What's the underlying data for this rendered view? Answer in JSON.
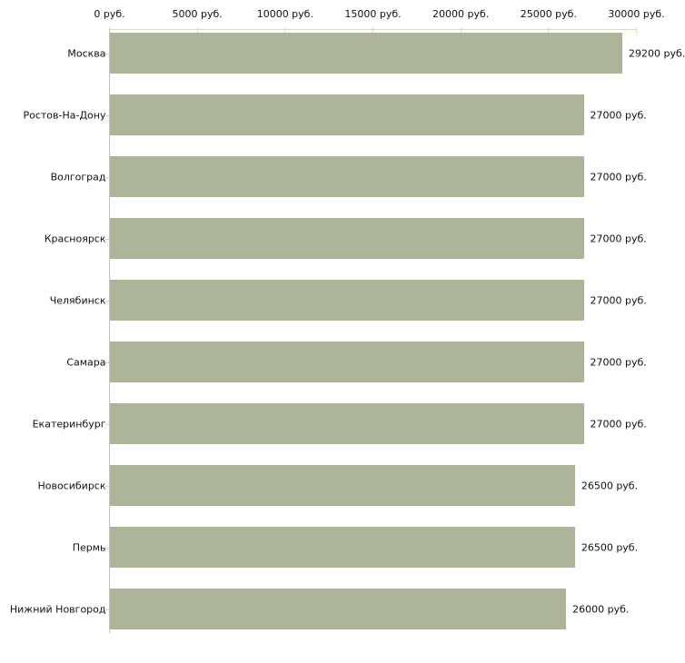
{
  "chart_data": {
    "type": "bar",
    "orientation": "horizontal",
    "title": "",
    "xlabel": "",
    "ylabel": "",
    "unit": "руб.",
    "categories": [
      "Москва",
      "Ростов-На-Дону",
      "Волгоград",
      "Красноярск",
      "Челябинск",
      "Самара",
      "Екатеринбург",
      "Новосибирск",
      "Пермь",
      "Нижний Новгород"
    ],
    "values": [
      29200,
      27000,
      27000,
      27000,
      27000,
      27000,
      27000,
      26500,
      26500,
      26000
    ],
    "value_labels": [
      "29200 руб.",
      "27000 руб.",
      "27000 руб.",
      "27000 руб.",
      "27000 руб.",
      "27000 руб.",
      "27000 руб.",
      "26500 руб.",
      "26500 руб.",
      "26000 руб."
    ],
    "x_ticks": [
      0,
      5000,
      10000,
      15000,
      20000,
      25000,
      30000
    ],
    "x_tick_labels": [
      "0 руб.",
      "5000 руб.",
      "10000 руб.",
      "15000 руб.",
      "20000 руб.",
      "25000 руб.",
      "30000 руб."
    ],
    "xlim": [
      0,
      30000
    ],
    "grid": false,
    "legend": false
  },
  "colors": {
    "bar": "#acb499",
    "x_axis_line": "#d8d8c4",
    "y_axis_line": "#c0c0c0",
    "category_tick": "#d8d8c4",
    "text": "#111111",
    "background": "#ffffff"
  }
}
